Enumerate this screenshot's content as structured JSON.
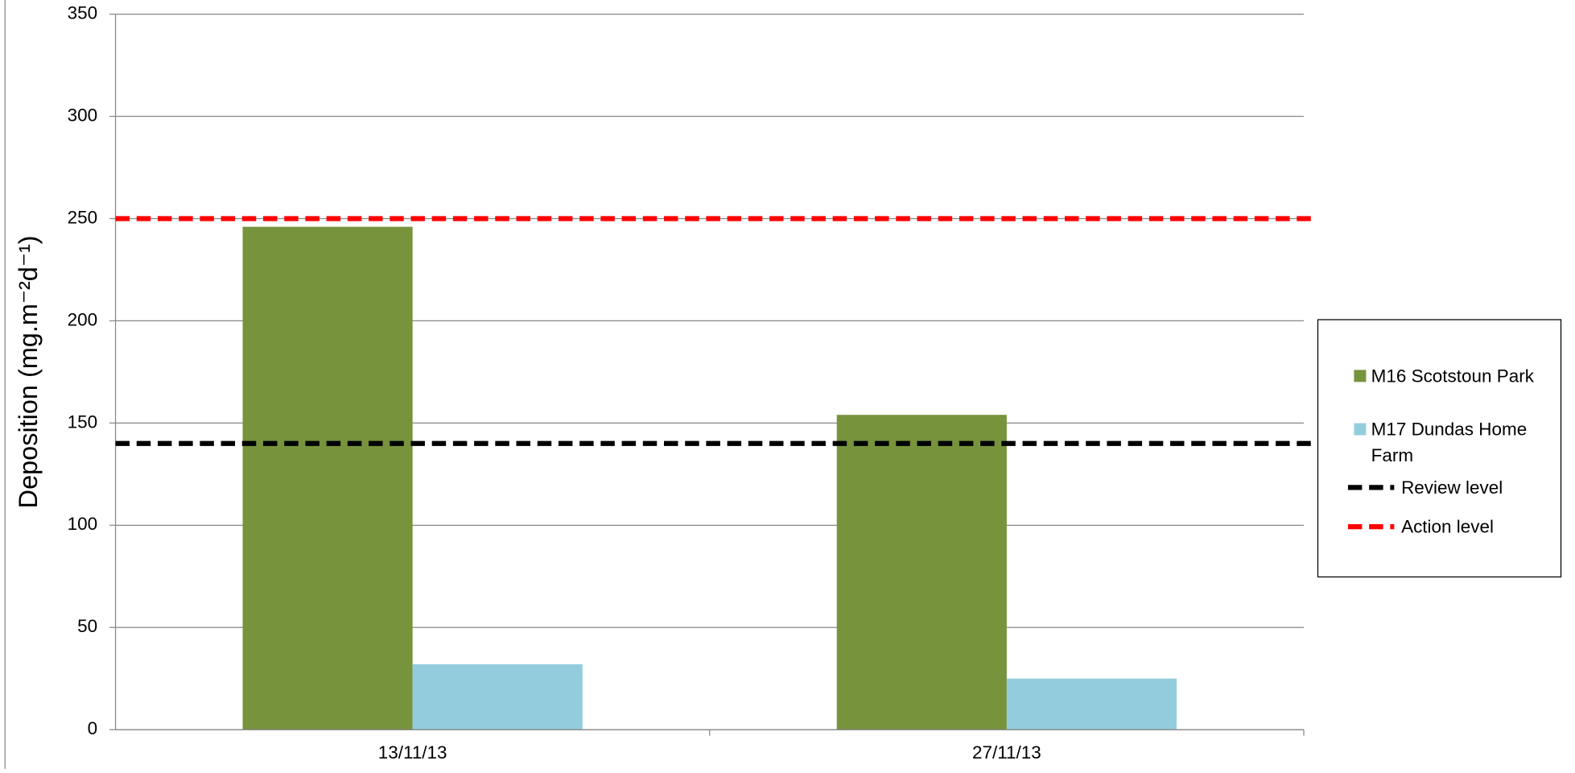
{
  "chart_data": {
    "type": "bar",
    "y_axis_label": "Deposition (mg.m⁻²d⁻¹)",
    "categories": [
      "13/11/13",
      "27/11/13"
    ],
    "series": [
      {
        "name": "M16  Scotstoun Park",
        "color": "#77933c",
        "values": [
          246,
          154
        ]
      },
      {
        "name": "M17  Dundas Home Farm",
        "color": "#93cddd",
        "values": [
          32,
          25
        ]
      }
    ],
    "reference_lines": [
      {
        "name": "Review level",
        "color": "#000000",
        "value": 140
      },
      {
        "name": "Action level",
        "color": "#ff0000",
        "value": 250
      }
    ],
    "ylim": [
      0,
      350
    ],
    "yticks": [
      0,
      50,
      100,
      150,
      200,
      250,
      300,
      350
    ],
    "grid": true,
    "legend": "right"
  }
}
